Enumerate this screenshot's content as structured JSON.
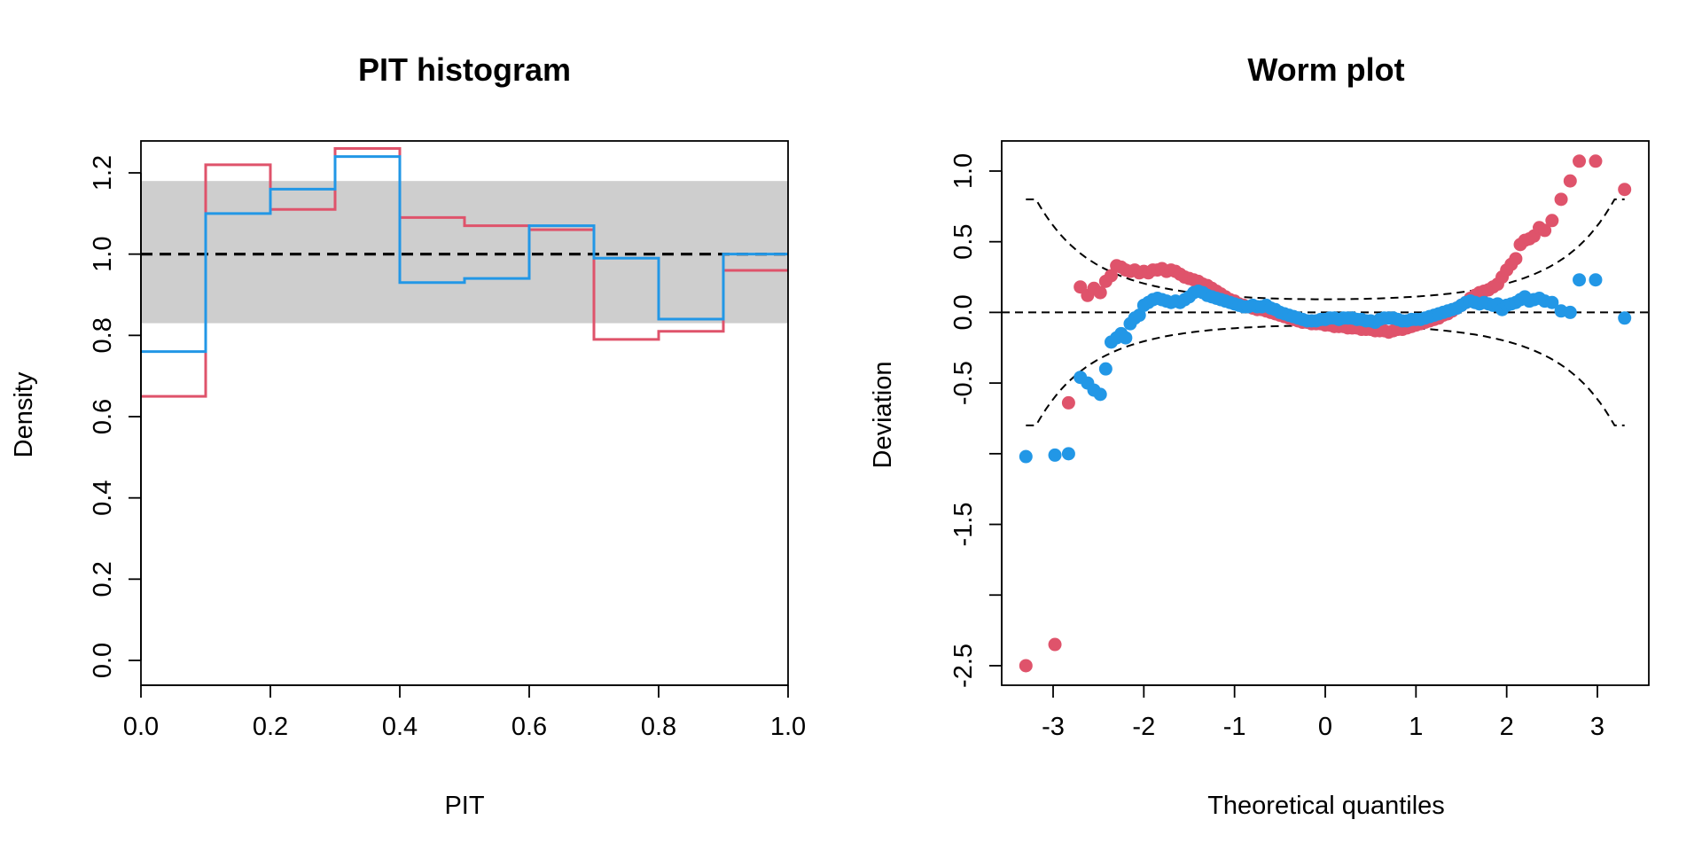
{
  "chart_data": [
    {
      "type": "histogram",
      "title": "PIT histogram",
      "xlabel": "PIT",
      "ylabel": "Density",
      "xlim": [
        0,
        1
      ],
      "ylim": [
        0,
        1.25
      ],
      "x_ticks": [
        0.0,
        0.2,
        0.4,
        0.6,
        0.8,
        1.0
      ],
      "y_ticks": [
        0.0,
        0.2,
        0.4,
        0.6,
        0.8,
        1.0,
        1.2
      ],
      "breaks": [
        0,
        0.1,
        0.2,
        0.3,
        0.4,
        0.5,
        0.6,
        0.7,
        0.8,
        0.9,
        1.0
      ],
      "reference_line": 1.0,
      "confidence_band": [
        0.83,
        1.18
      ],
      "band_color": "#CECECE",
      "series": [
        {
          "color": "#DF536B",
          "values": [
            0.65,
            1.22,
            1.11,
            1.26,
            1.09,
            1.07,
            1.06,
            0.79,
            0.81,
            0.96
          ]
        },
        {
          "color": "#2297E6",
          "values": [
            0.76,
            1.1,
            1.16,
            1.24,
            0.93,
            0.94,
            1.07,
            0.99,
            0.84,
            1.0
          ]
        }
      ]
    },
    {
      "type": "scatter",
      "title": "Worm plot",
      "xlabel": "Theoretical quantiles",
      "ylabel": "Deviation",
      "xlim": [
        -3.5,
        3.5
      ],
      "ylim": [
        -2.6,
        1.2
      ],
      "x_ticks": [
        -3,
        -2,
        -1,
        0,
        1,
        2,
        3
      ],
      "y_ticks": [
        1.0,
        0.5,
        0.0,
        -0.5,
        -1.0,
        -1.5,
        -2.0,
        -2.5
      ],
      "y_tick_labels": [
        "1.0",
        "0.5",
        "0.0",
        "-0.5",
        "",
        "-1.5",
        "",
        "-2.5"
      ],
      "reference_line": 0.0,
      "series": [
        {
          "color": "#DF536B",
          "points": [
            [
              -3.3,
              -2.5
            ],
            [
              -2.98,
              -2.35
            ],
            [
              -2.83,
              -0.64
            ],
            [
              -2.7,
              0.18
            ],
            [
              -2.62,
              0.12
            ],
            [
              -2.55,
              0.17
            ],
            [
              -2.48,
              0.14
            ],
            [
              -2.42,
              0.22
            ],
            [
              -2.36,
              0.26
            ],
            [
              -2.3,
              0.33
            ],
            [
              -2.25,
              0.32
            ],
            [
              -2.2,
              0.3
            ],
            [
              -2.15,
              0.29
            ],
            [
              -2.1,
              0.3
            ],
            [
              -2.05,
              0.28
            ],
            [
              -2.0,
              0.29
            ],
            [
              -1.95,
              0.28
            ],
            [
              -1.9,
              0.3
            ],
            [
              -1.85,
              0.3
            ],
            [
              -1.8,
              0.31
            ],
            [
              -1.75,
              0.29
            ],
            [
              -1.7,
              0.3
            ],
            [
              -1.65,
              0.29
            ],
            [
              -1.6,
              0.27
            ],
            [
              -1.55,
              0.25
            ],
            [
              -1.5,
              0.24
            ],
            [
              -1.45,
              0.23
            ],
            [
              -1.4,
              0.22
            ],
            [
              -1.35,
              0.2
            ],
            [
              -1.3,
              0.19
            ],
            [
              -1.25,
              0.17
            ],
            [
              -1.2,
              0.15
            ],
            [
              -1.15,
              0.13
            ],
            [
              -1.1,
              0.11
            ],
            [
              -1.05,
              0.09
            ],
            [
              -1.0,
              0.08
            ],
            [
              -0.95,
              0.06
            ],
            [
              -0.9,
              0.05
            ],
            [
              -0.85,
              0.04
            ],
            [
              -0.8,
              0.03
            ],
            [
              -0.75,
              0.02
            ],
            [
              -0.7,
              0.02
            ],
            [
              -0.65,
              0.01
            ],
            [
              -0.6,
              0.0
            ],
            [
              -0.55,
              -0.01
            ],
            [
              -0.5,
              -0.02
            ],
            [
              -0.45,
              -0.03
            ],
            [
              -0.4,
              -0.04
            ],
            [
              -0.35,
              -0.05
            ],
            [
              -0.3,
              -0.06
            ],
            [
              -0.25,
              -0.07
            ],
            [
              -0.2,
              -0.07
            ],
            [
              -0.15,
              -0.08
            ],
            [
              -0.1,
              -0.08
            ],
            [
              -0.05,
              -0.08
            ],
            [
              0.0,
              -0.09
            ],
            [
              0.05,
              -0.09
            ],
            [
              0.1,
              -0.1
            ],
            [
              0.15,
              -0.1
            ],
            [
              0.2,
              -0.1
            ],
            [
              0.25,
              -0.11
            ],
            [
              0.3,
              -0.11
            ],
            [
              0.35,
              -0.11
            ],
            [
              0.4,
              -0.12
            ],
            [
              0.45,
              -0.12
            ],
            [
              0.5,
              -0.12
            ],
            [
              0.55,
              -0.13
            ],
            [
              0.6,
              -0.13
            ],
            [
              0.65,
              -0.13
            ],
            [
              0.7,
              -0.14
            ],
            [
              0.75,
              -0.13
            ],
            [
              0.8,
              -0.12
            ],
            [
              0.85,
              -0.12
            ],
            [
              0.9,
              -0.11
            ],
            [
              0.95,
              -0.1
            ],
            [
              1.0,
              -0.09
            ],
            [
              1.05,
              -0.08
            ],
            [
              1.1,
              -0.07
            ],
            [
              1.15,
              -0.06
            ],
            [
              1.2,
              -0.05
            ],
            [
              1.25,
              -0.04
            ],
            [
              1.3,
              -0.02
            ],
            [
              1.35,
              -0.01
            ],
            [
              1.4,
              0.01
            ],
            [
              1.45,
              0.03
            ],
            [
              1.5,
              0.05
            ],
            [
              1.55,
              0.07
            ],
            [
              1.6,
              0.1
            ],
            [
              1.65,
              0.12
            ],
            [
              1.7,
              0.14
            ],
            [
              1.75,
              0.15
            ],
            [
              1.8,
              0.16
            ],
            [
              1.85,
              0.18
            ],
            [
              1.9,
              0.2
            ],
            [
              1.95,
              0.25
            ],
            [
              2.0,
              0.3
            ],
            [
              2.05,
              0.34
            ],
            [
              2.1,
              0.38
            ],
            [
              2.15,
              0.48
            ],
            [
              2.2,
              0.51
            ],
            [
              2.25,
              0.52
            ],
            [
              2.3,
              0.54
            ],
            [
              2.36,
              0.6
            ],
            [
              2.42,
              0.58
            ],
            [
              2.5,
              0.65
            ],
            [
              2.6,
              0.8
            ],
            [
              2.7,
              0.93
            ],
            [
              2.8,
              1.07
            ],
            [
              2.98,
              1.07
            ],
            [
              3.3,
              0.87
            ]
          ]
        },
        {
          "color": "#2297E6",
          "points": [
            [
              -3.3,
              -1.02
            ],
            [
              -2.98,
              -1.01
            ],
            [
              -2.83,
              -1.0
            ],
            [
              -2.7,
              -0.46
            ],
            [
              -2.62,
              -0.5
            ],
            [
              -2.55,
              -0.55
            ],
            [
              -2.48,
              -0.58
            ],
            [
              -2.42,
              -0.4
            ],
            [
              -2.36,
              -0.21
            ],
            [
              -2.3,
              -0.18
            ],
            [
              -2.25,
              -0.15
            ],
            [
              -2.2,
              -0.18
            ],
            [
              -2.15,
              -0.08
            ],
            [
              -2.1,
              -0.04
            ],
            [
              -2.05,
              -0.02
            ],
            [
              -2.0,
              0.05
            ],
            [
              -1.95,
              0.07
            ],
            [
              -1.9,
              0.09
            ],
            [
              -1.85,
              0.1
            ],
            [
              -1.8,
              0.09
            ],
            [
              -1.75,
              0.08
            ],
            [
              -1.7,
              0.07
            ],
            [
              -1.65,
              0.08
            ],
            [
              -1.6,
              0.07
            ],
            [
              -1.55,
              0.09
            ],
            [
              -1.5,
              0.11
            ],
            [
              -1.45,
              0.14
            ],
            [
              -1.4,
              0.15
            ],
            [
              -1.35,
              0.14
            ],
            [
              -1.3,
              0.12
            ],
            [
              -1.25,
              0.11
            ],
            [
              -1.2,
              0.1
            ],
            [
              -1.15,
              0.09
            ],
            [
              -1.1,
              0.08
            ],
            [
              -1.05,
              0.07
            ],
            [
              -1.0,
              0.06
            ],
            [
              -0.95,
              0.05
            ],
            [
              -0.9,
              0.04
            ],
            [
              -0.85,
              0.04
            ],
            [
              -0.8,
              0.05
            ],
            [
              -0.75,
              0.04
            ],
            [
              -0.7,
              0.04
            ],
            [
              -0.65,
              0.05
            ],
            [
              -0.6,
              0.03
            ],
            [
              -0.55,
              0.02
            ],
            [
              -0.5,
              0.0
            ],
            [
              -0.45,
              -0.01
            ],
            [
              -0.4,
              -0.02
            ],
            [
              -0.35,
              -0.03
            ],
            [
              -0.3,
              -0.04
            ],
            [
              -0.25,
              -0.05
            ],
            [
              -0.2,
              -0.06
            ],
            [
              -0.15,
              -0.06
            ],
            [
              -0.1,
              -0.06
            ],
            [
              -0.05,
              -0.05
            ],
            [
              0.0,
              -0.05
            ],
            [
              0.05,
              -0.04
            ],
            [
              0.1,
              -0.04
            ],
            [
              0.15,
              -0.05
            ],
            [
              0.2,
              -0.04
            ],
            [
              0.25,
              -0.04
            ],
            [
              0.3,
              -0.04
            ],
            [
              0.35,
              -0.05
            ],
            [
              0.4,
              -0.05
            ],
            [
              0.45,
              -0.06
            ],
            [
              0.5,
              -0.06
            ],
            [
              0.55,
              -0.07
            ],
            [
              0.6,
              -0.05
            ],
            [
              0.65,
              -0.04
            ],
            [
              0.7,
              -0.04
            ],
            [
              0.75,
              -0.04
            ],
            [
              0.8,
              -0.05
            ],
            [
              0.85,
              -0.06
            ],
            [
              0.9,
              -0.06
            ],
            [
              0.95,
              -0.05
            ],
            [
              1.0,
              -0.05
            ],
            [
              1.05,
              -0.05
            ],
            [
              1.1,
              -0.04
            ],
            [
              1.15,
              -0.03
            ],
            [
              1.2,
              -0.02
            ],
            [
              1.25,
              -0.01
            ],
            [
              1.3,
              0.0
            ],
            [
              1.35,
              0.01
            ],
            [
              1.4,
              0.02
            ],
            [
              1.45,
              0.03
            ],
            [
              1.5,
              0.05
            ],
            [
              1.55,
              0.07
            ],
            [
              1.6,
              0.08
            ],
            [
              1.65,
              0.07
            ],
            [
              1.7,
              0.06
            ],
            [
              1.75,
              0.07
            ],
            [
              1.8,
              0.06
            ],
            [
              1.85,
              0.05
            ],
            [
              1.9,
              0.06
            ],
            [
              1.95,
              0.02
            ],
            [
              2.0,
              0.05
            ],
            [
              2.05,
              0.06
            ],
            [
              2.1,
              0.07
            ],
            [
              2.15,
              0.09
            ],
            [
              2.2,
              0.11
            ],
            [
              2.25,
              0.08
            ],
            [
              2.3,
              0.09
            ],
            [
              2.36,
              0.1
            ],
            [
              2.42,
              0.08
            ],
            [
              2.5,
              0.07
            ],
            [
              2.6,
              0.01
            ],
            [
              2.7,
              0.0
            ],
            [
              2.8,
              0.23
            ],
            [
              2.98,
              0.23
            ],
            [
              3.3,
              -0.04
            ]
          ]
        }
      ]
    }
  ]
}
